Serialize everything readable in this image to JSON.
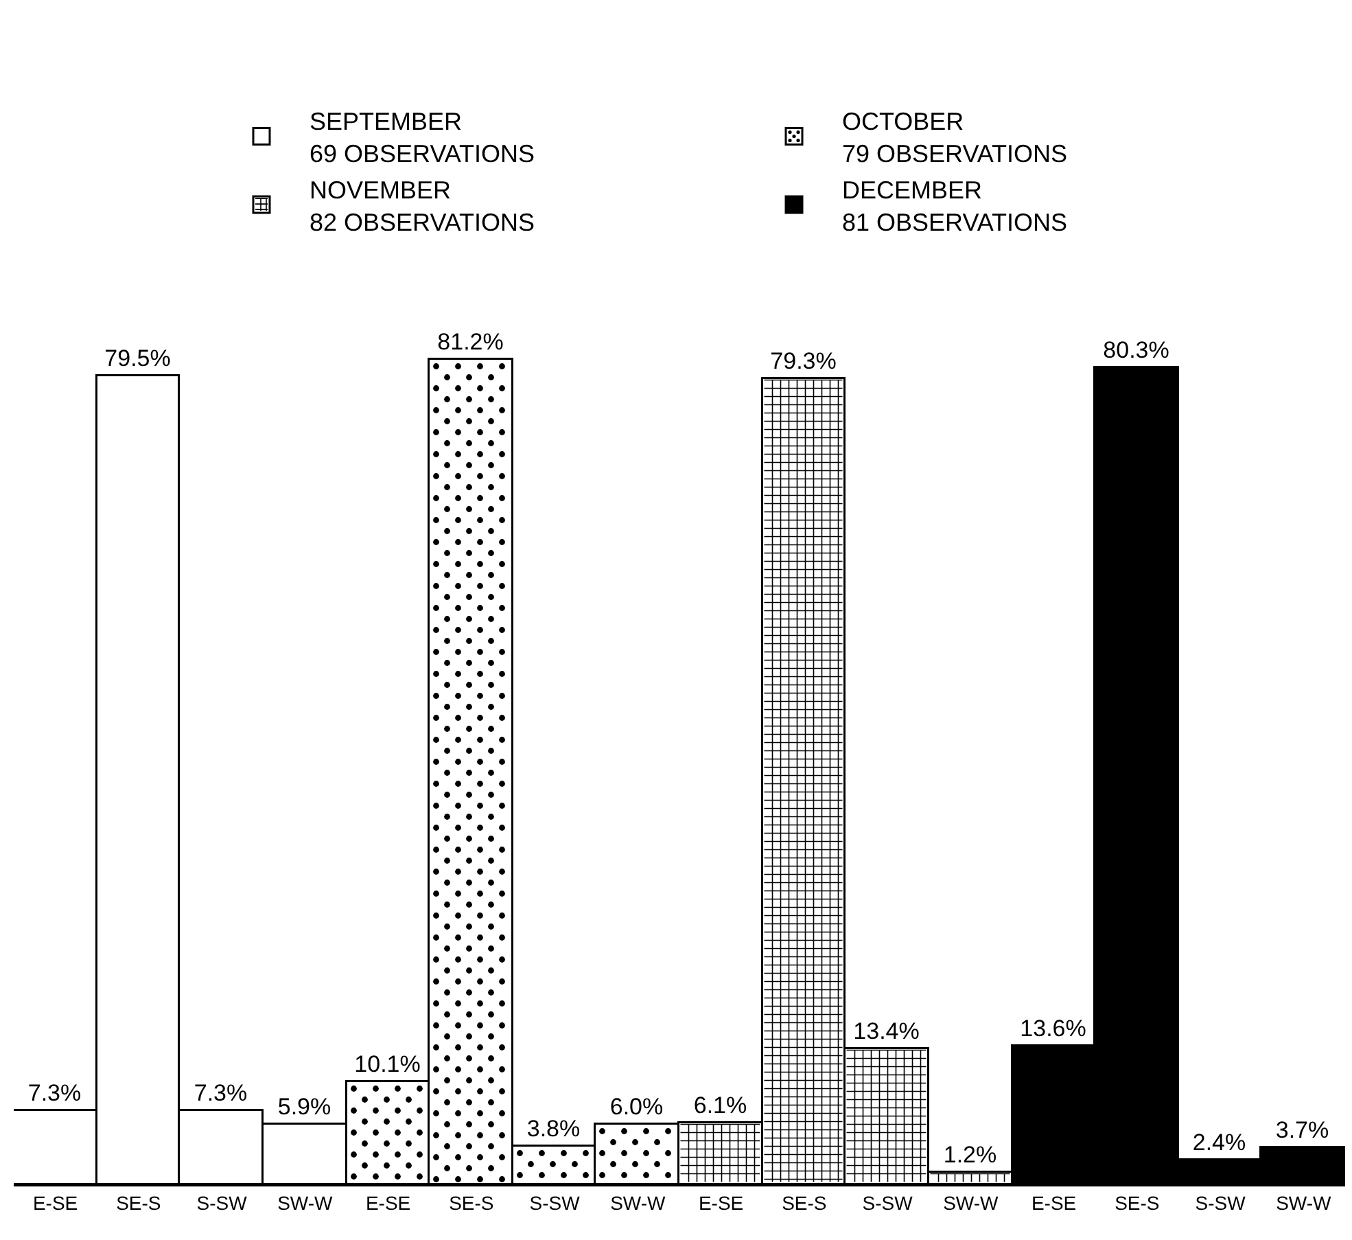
{
  "chart_data": {
    "type": "bar",
    "categories": [
      "E-SE",
      "SE-S",
      "S-SW",
      "SW-W",
      "E-SE",
      "SE-S",
      "S-SW",
      "SW-W",
      "E-SE",
      "SE-S",
      "S-SW",
      "SW-W",
      "E-SE",
      "SE-S",
      "S-SW",
      "SW-W"
    ],
    "series": [
      {
        "name": "SEPTEMBER\n69 OBSERVATIONS",
        "color": "#ffffff",
        "values": [
          7.3,
          79.5,
          7.3,
          5.9,
          null,
          null,
          null,
          null,
          null,
          null,
          null,
          null,
          null,
          null,
          null,
          null
        ],
        "value_labels": [
          "7.3%",
          "79.5%",
          "7.3%",
          "5.9%",
          null,
          null,
          null,
          null,
          null,
          null,
          null,
          null,
          null,
          null,
          null,
          null
        ]
      },
      {
        "name": "OCTOBER\n79 OBSERVATIONS",
        "color": "#ffffff",
        "values": [
          null,
          null,
          null,
          null,
          10.1,
          81.2,
          3.8,
          6.0,
          null,
          null,
          null,
          null,
          null,
          null,
          null,
          null
        ],
        "value_labels": [
          null,
          null,
          null,
          null,
          "10.1%",
          "81.2%",
          "3.8%",
          "6.0%",
          null,
          null,
          null,
          null,
          null,
          null,
          null,
          null
        ]
      },
      {
        "name": "NOVEMBER\n82 OBSERVATIONS",
        "color": "#ffffff",
        "values": [
          null,
          null,
          null,
          null,
          null,
          null,
          null,
          null,
          6.1,
          79.3,
          13.4,
          1.2,
          null,
          null,
          null,
          null
        ],
        "value_labels": [
          null,
          null,
          null,
          null,
          null,
          null,
          null,
          null,
          "6.1%",
          "79.3%",
          "13.4%",
          "1.2%",
          null,
          null,
          null,
          null
        ]
      },
      {
        "name": "DECEMBER\n81 OBSERVATIONS",
        "color": "#000000",
        "values": [
          null,
          null,
          null,
          null,
          null,
          null,
          null,
          null,
          null,
          null,
          null,
          null,
          13.6,
          80.3,
          2.4,
          3.7
        ],
        "value_labels": [
          null,
          null,
          null,
          null,
          null,
          null,
          null,
          null,
          null,
          null,
          null,
          null,
          "13.6%",
          "80.3%",
          "2.4%",
          "3.7%"
        ]
      }
    ],
    "legend": "top",
    "grid": false
  }
}
